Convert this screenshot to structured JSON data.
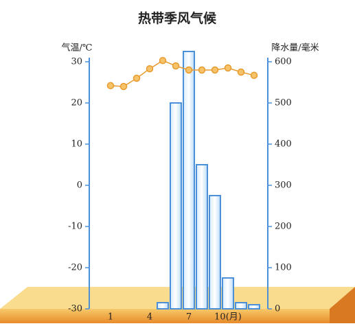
{
  "chart_data": {
    "type": "climate",
    "title": "热带季风气候",
    "ylabel": "气温/℃",
    "y2label": "降水量/毫米",
    "categories": [
      "1",
      null,
      null,
      "4",
      null,
      null,
      "7",
      null,
      null,
      "10(月)",
      null,
      null
    ],
    "ylim": [
      -30,
      30
    ],
    "yticks": [
      -30,
      -20,
      -10,
      0,
      10,
      20,
      30
    ],
    "y2lim": [
      0,
      600
    ],
    "y2ticks": [
      0,
      100,
      200,
      300,
      400,
      500,
      600
    ],
    "series": [
      {
        "name": "气温",
        "type": "line",
        "axis": "y",
        "color": "#e89a2c",
        "values": [
          24.2,
          24,
          26,
          28.3,
          30.3,
          29,
          28,
          28,
          28,
          28.5,
          27.5,
          26.7
        ]
      },
      {
        "name": "降水量",
        "type": "bar",
        "axis": "y2",
        "color": "#4a8fd8",
        "values": [
          0,
          0,
          0,
          0,
          15,
          500,
          625,
          350,
          275,
          75,
          15,
          10
        ]
      }
    ]
  }
}
